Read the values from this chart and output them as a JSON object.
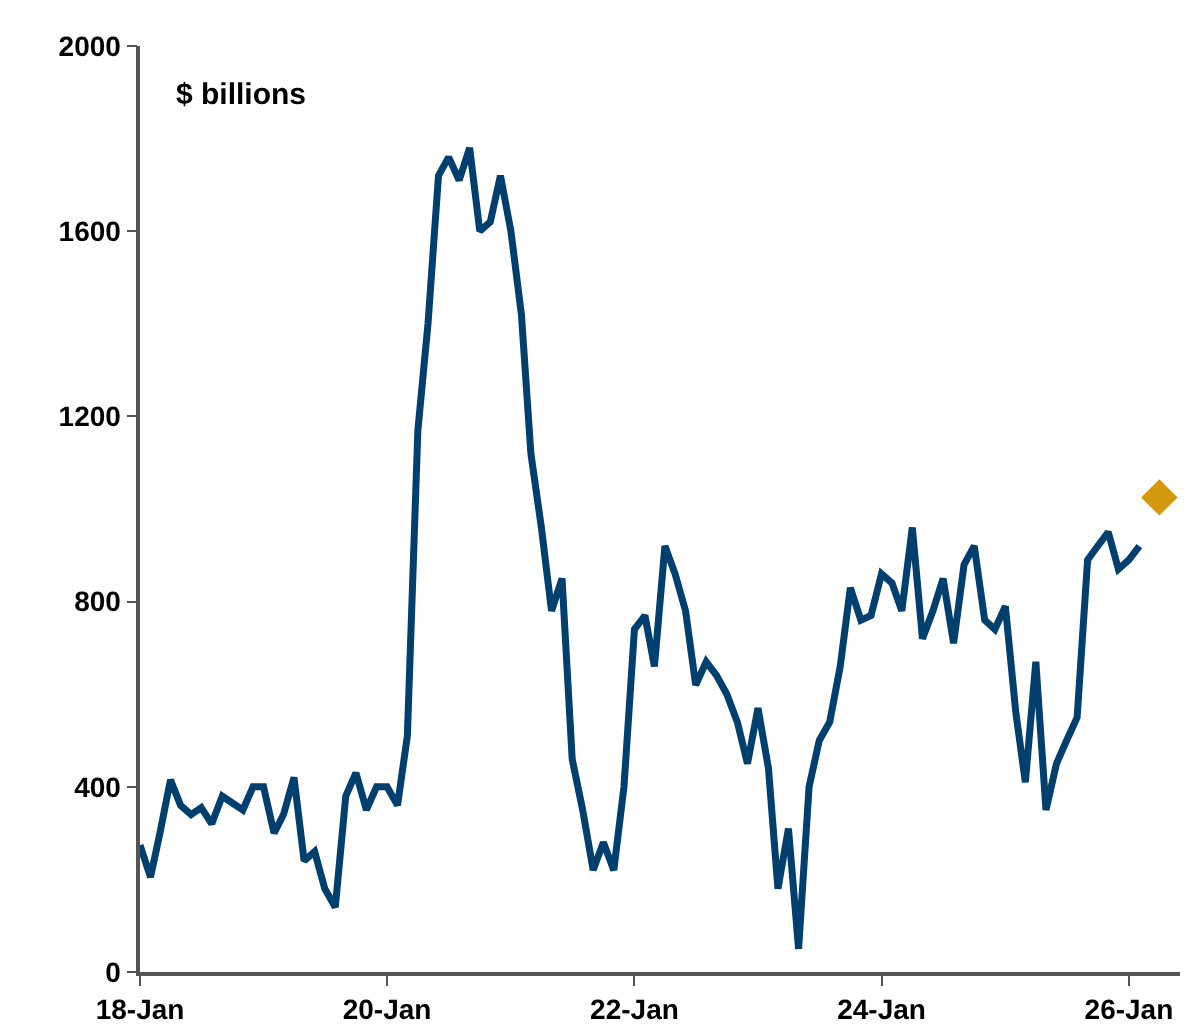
{
  "chart_data": {
    "type": "line",
    "ylabel": "$ billions",
    "x": [
      "2018-01",
      "2018-02",
      "2018-03",
      "2018-04",
      "2018-05",
      "2018-06",
      "2018-07",
      "2018-08",
      "2018-09",
      "2018-10",
      "2018-11",
      "2018-12",
      "2019-01",
      "2019-02",
      "2019-03",
      "2019-04",
      "2019-05",
      "2019-06",
      "2019-07",
      "2019-08",
      "2019-09",
      "2019-10",
      "2019-11",
      "2019-12",
      "2020-01",
      "2020-02",
      "2020-03",
      "2020-04",
      "2020-05",
      "2020-06",
      "2020-07",
      "2020-08",
      "2020-09",
      "2020-10",
      "2020-11",
      "2020-12",
      "2021-01",
      "2021-02",
      "2021-03",
      "2021-04",
      "2021-05",
      "2021-06",
      "2021-07",
      "2021-08",
      "2021-09",
      "2021-10",
      "2021-11",
      "2021-12",
      "2022-01",
      "2022-02",
      "2022-03",
      "2022-04",
      "2022-05",
      "2022-06",
      "2022-07",
      "2022-08",
      "2022-09",
      "2022-10",
      "2022-11",
      "2022-12",
      "2023-01",
      "2023-02",
      "2023-03",
      "2023-04",
      "2023-05",
      "2023-06",
      "2023-07",
      "2023-08",
      "2023-09",
      "2023-10",
      "2023-11",
      "2023-12",
      "2024-01",
      "2024-02",
      "2024-03",
      "2024-04",
      "2024-05",
      "2024-06",
      "2024-07",
      "2024-08",
      "2024-09",
      "2024-10",
      "2024-11",
      "2024-12",
      "2025-01",
      "2025-02",
      "2025-03",
      "2025-04",
      "2025-05",
      "2025-06",
      "2025-07",
      "2025-08",
      "2025-09",
      "2025-10",
      "2025-11",
      "2025-12",
      "2026-01",
      "2026-02"
    ],
    "series": [
      {
        "color": "#003f6e",
        "values": [
          274,
          205,
          300,
          415,
          360,
          340,
          355,
          320,
          380,
          365,
          350,
          400,
          400,
          300,
          340,
          420,
          240,
          260,
          180,
          140,
          380,
          430,
          350,
          400,
          400,
          360,
          510,
          1170,
          1400,
          1720,
          1760,
          1710,
          1780,
          1600,
          1620,
          1720,
          1600,
          1420,
          1120,
          960,
          780,
          850,
          460,
          350,
          220,
          280,
          220,
          400,
          740,
          770,
          660,
          920,
          860,
          780,
          620,
          670,
          640,
          600,
          540,
          450,
          570,
          440,
          180,
          310,
          50,
          400,
          500,
          540,
          660,
          830,
          760,
          770,
          860,
          840,
          780,
          960,
          720,
          780,
          850,
          710,
          880,
          920,
          760,
          740,
          790,
          560,
          410,
          670,
          350,
          450,
          500,
          550,
          890,
          920,
          950,
          870,
          890,
          920
        ]
      },
      {
        "type": "scatter",
        "color": "#d4980f",
        "marker": "diamond",
        "x": [
          "2026-04"
        ],
        "values": [
          1025
        ]
      }
    ],
    "xlim": [
      "2018-01-01",
      "2026-06-01"
    ],
    "xticks": [
      {
        "value": "2018-01",
        "label": "18-Jan"
      },
      {
        "value": "2020-01",
        "label": "20-Jan"
      },
      {
        "value": "2022-01",
        "label": "22-Jan"
      },
      {
        "value": "2024-01",
        "label": "24-Jan"
      },
      {
        "value": "2026-01",
        "label": "26-Jan"
      }
    ],
    "ylim": [
      0,
      2000
    ],
    "yticks": [
      0,
      400,
      800,
      1200,
      1600,
      2000
    ],
    "grid": false
  }
}
